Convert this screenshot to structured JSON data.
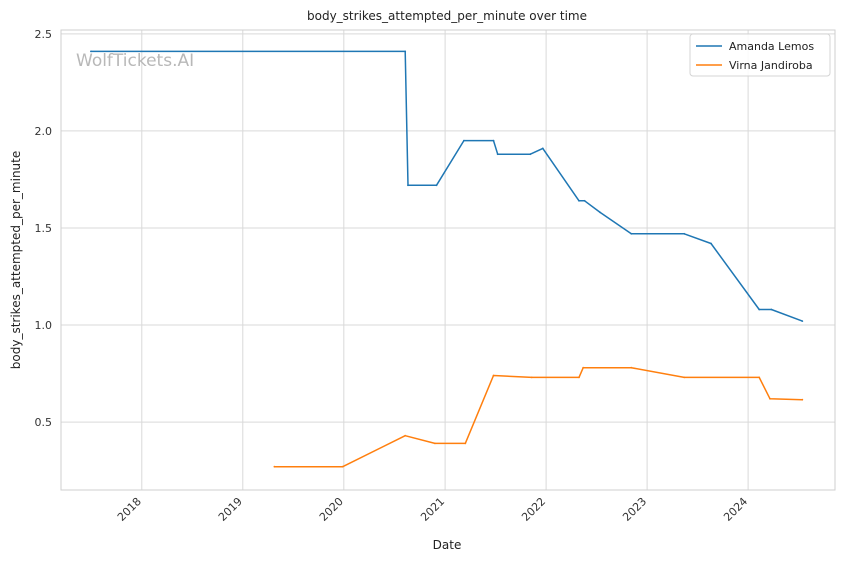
{
  "chart_data": {
    "type": "line",
    "title": "body_strikes_attempted_per_minute over time",
    "xlabel": "Date",
    "ylabel": "body_strikes_attempted_per_minute",
    "watermark": "WolfTickets.AI",
    "x_ticks": [
      "2018",
      "2019",
      "2020",
      "2021",
      "2022",
      "2023",
      "2024"
    ],
    "y_ticks": [
      "0.5",
      "1.0",
      "1.5",
      "2.0",
      "2.5"
    ],
    "xlim": [
      "2017-03-15",
      "2024-11-10"
    ],
    "ylim": [
      0.15,
      2.52
    ],
    "grid": true,
    "legend_position": "top-right",
    "series": [
      {
        "name": "Amanda Lemos",
        "color": "#1f77b4",
        "points": [
          [
            "2017-07-01",
            2.41
          ],
          [
            "2020-08-10",
            2.41
          ],
          [
            "2020-08-20",
            1.72
          ],
          [
            "2020-12-01",
            1.72
          ],
          [
            "2021-03-10",
            1.95
          ],
          [
            "2021-06-25",
            1.95
          ],
          [
            "2021-07-10",
            1.88
          ],
          [
            "2021-11-05",
            1.88
          ],
          [
            "2021-12-20",
            1.91
          ],
          [
            "2022-04-30",
            1.64
          ],
          [
            "2022-05-20",
            1.64
          ],
          [
            "2022-07-15",
            1.58
          ],
          [
            "2022-11-05",
            1.47
          ],
          [
            "2023-05-15",
            1.47
          ],
          [
            "2023-08-20",
            1.42
          ],
          [
            "2024-02-10",
            1.08
          ],
          [
            "2024-03-25",
            1.08
          ],
          [
            "2024-07-15",
            1.02
          ]
        ]
      },
      {
        "name": "Virna Jandiroba",
        "color": "#ff7f0e",
        "points": [
          [
            "2019-04-25",
            0.27
          ],
          [
            "2019-12-28",
            0.27
          ],
          [
            "2020-08-10",
            0.43
          ],
          [
            "2020-11-25",
            0.39
          ],
          [
            "2021-03-15",
            0.39
          ],
          [
            "2021-06-25",
            0.74
          ],
          [
            "2021-11-10",
            0.73
          ],
          [
            "2022-04-30",
            0.73
          ],
          [
            "2022-05-15",
            0.78
          ],
          [
            "2022-11-05",
            0.78
          ],
          [
            "2023-05-15",
            0.73
          ],
          [
            "2024-02-10",
            0.73
          ],
          [
            "2024-03-20",
            0.62
          ],
          [
            "2024-07-15",
            0.615
          ]
        ]
      }
    ]
  }
}
